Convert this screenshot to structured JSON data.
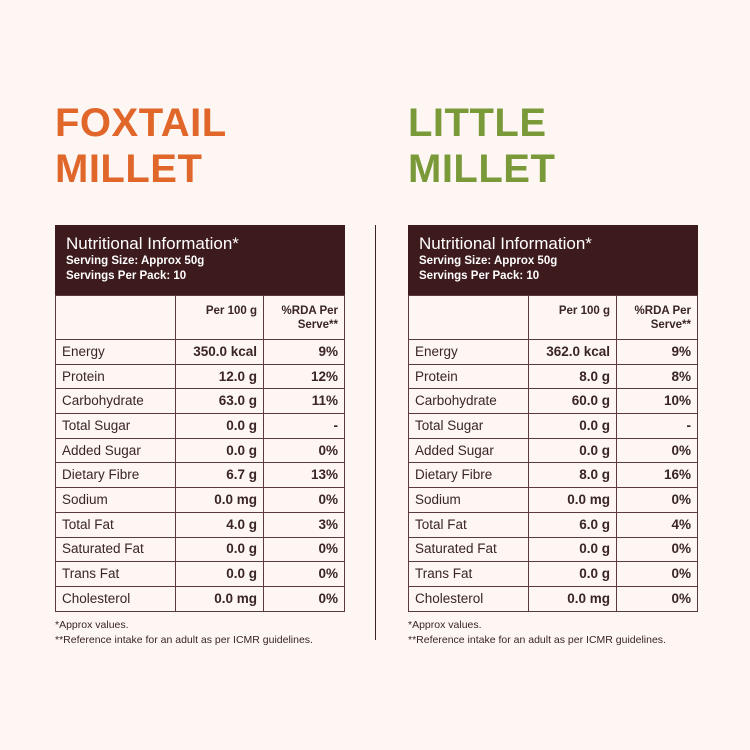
{
  "colors": {
    "foxtail": "#e0662a",
    "little": "#7a9a3a",
    "header_bg": "#3d1a1c",
    "background": "#fdf6f2"
  },
  "header": {
    "title": "Nutritional Information*",
    "serving_size": "Serving Size: Approx 50g",
    "servings_per_pack": "Servings Per Pack: 10"
  },
  "columns": {
    "per100": "Per 100 g",
    "rda": "%RDA Per Serve**"
  },
  "footnotes": [
    "*Approx values.",
    "**Reference intake for an adult as per ICMR guidelines."
  ],
  "products": [
    {
      "title_line1": "FOXTAIL",
      "title_line2": "MILLET",
      "rows": [
        [
          "Energy",
          "350.0 kcal",
          "9%"
        ],
        [
          "Protein",
          "12.0 g",
          "12%"
        ],
        [
          "Carbohydrate",
          "63.0 g",
          "11%"
        ],
        [
          "Total Sugar",
          "0.0 g",
          "-"
        ],
        [
          "Added Sugar",
          "0.0 g",
          "0%"
        ],
        [
          "Dietary Fibre",
          "6.7 g",
          "13%"
        ],
        [
          "Sodium",
          "0.0 mg",
          "0%"
        ],
        [
          "Total Fat",
          "4.0 g",
          "3%"
        ],
        [
          "Saturated Fat",
          "0.0 g",
          "0%"
        ],
        [
          "Trans Fat",
          "0.0 g",
          "0%"
        ],
        [
          "Cholesterol",
          "0.0 mg",
          "0%"
        ]
      ]
    },
    {
      "title_line1": "LITTLE",
      "title_line2": "MILLET",
      "rows": [
        [
          "Energy",
          "362.0 kcal",
          "9%"
        ],
        [
          "Protein",
          "8.0 g",
          "8%"
        ],
        [
          "Carbohydrate",
          "60.0 g",
          "10%"
        ],
        [
          "Total Sugar",
          "0.0 g",
          "-"
        ],
        [
          "Added Sugar",
          "0.0 g",
          "0%"
        ],
        [
          "Dietary Fibre",
          "8.0 g",
          "16%"
        ],
        [
          "Sodium",
          "0.0 mg",
          "0%"
        ],
        [
          "Total Fat",
          "6.0 g",
          "4%"
        ],
        [
          "Saturated Fat",
          "0.0 g",
          "0%"
        ],
        [
          "Trans Fat",
          "0.0 g",
          "0%"
        ],
        [
          "Cholesterol",
          "0.0 mg",
          "0%"
        ]
      ]
    }
  ]
}
